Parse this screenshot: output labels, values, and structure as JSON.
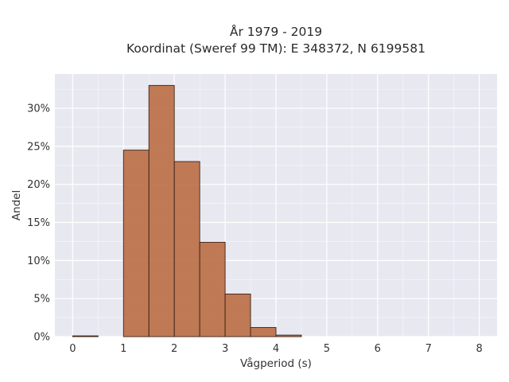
{
  "chart_data": {
    "type": "bar",
    "title_lines": [
      "År 1979 - 2019",
      "Koordinat (Sweref 99 TM): E 348372, N 6199581"
    ],
    "xlabel": "Vågperiod (s)",
    "ylabel": "Andel",
    "xlim": [
      -0.35,
      8.35
    ],
    "ylim": [
      0,
      0.345
    ],
    "x_ticks": [
      0,
      1,
      2,
      3,
      4,
      5,
      6,
      7,
      8
    ],
    "x_tick_labels": [
      "0",
      "1",
      "2",
      "3",
      "4",
      "5",
      "6",
      "7",
      "8"
    ],
    "y_ticks": [
      0,
      0.05,
      0.1,
      0.15,
      0.2,
      0.25,
      0.3
    ],
    "y_tick_labels": [
      "0%",
      "5%",
      "10%",
      "15%",
      "20%",
      "25%",
      "30%"
    ],
    "grid": true,
    "bin_width": 0.5,
    "bins": [
      {
        "x0": 0.0,
        "x1": 0.5,
        "value": 0.001
      },
      {
        "x0": 1.0,
        "x1": 1.5,
        "value": 0.245
      },
      {
        "x0": 1.5,
        "x1": 2.0,
        "value": 0.33
      },
      {
        "x0": 2.0,
        "x1": 2.5,
        "value": 0.23
      },
      {
        "x0": 2.5,
        "x1": 3.0,
        "value": 0.124
      },
      {
        "x0": 3.0,
        "x1": 3.5,
        "value": 0.056
      },
      {
        "x0": 3.5,
        "x1": 4.0,
        "value": 0.012
      },
      {
        "x0": 4.0,
        "x1": 4.5,
        "value": 0.002
      }
    ],
    "colors": {
      "bar": "#b8693f",
      "plot_bg": "#e8e8f1",
      "grid": "#ffffff"
    }
  }
}
